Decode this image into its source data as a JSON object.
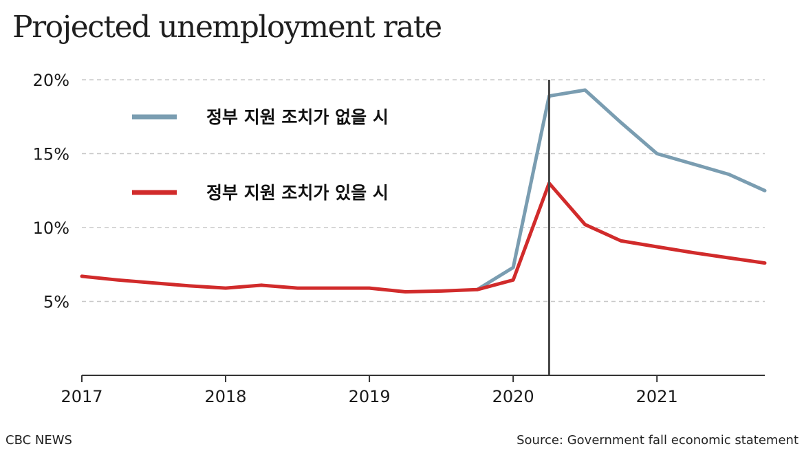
{
  "chart_data": {
    "type": "line",
    "title": "Projected unemployment rate",
    "yticks": [
      {
        "value": 5,
        "label": "5%"
      },
      {
        "value": 10,
        "label": "10%"
      },
      {
        "value": 15,
        "label": "15%"
      },
      {
        "value": 20,
        "label": "20%"
      }
    ],
    "xticks": [
      {
        "value": 2017,
        "label": "2017"
      },
      {
        "value": 2018,
        "label": "2018"
      },
      {
        "value": 2019,
        "label": "2019"
      },
      {
        "value": 2020,
        "label": "2020"
      },
      {
        "value": 2021,
        "label": "2021"
      }
    ],
    "xlim": [
      2017,
      2021.75
    ],
    "ylim": [
      0,
      20
    ],
    "grid": true,
    "marker_x": 2020.25,
    "legend_position": "top-left",
    "series": [
      {
        "name": "정부 지원 조치가 없을 시",
        "color": "#7a9db1",
        "points": [
          [
            2019.75,
            5.8
          ],
          [
            2020.0,
            7.3
          ],
          [
            2020.25,
            18.9
          ],
          [
            2020.5,
            19.3
          ],
          [
            2020.75,
            17.1
          ],
          [
            2021.0,
            15.0
          ],
          [
            2021.25,
            14.3
          ],
          [
            2021.5,
            13.6
          ],
          [
            2021.75,
            12.5
          ]
        ]
      },
      {
        "name": "정부 지원 조치가 있을 시",
        "color": "#d12b2b",
        "points": [
          [
            2017.0,
            6.7
          ],
          [
            2017.25,
            6.45
          ],
          [
            2017.5,
            6.25
          ],
          [
            2017.75,
            6.05
          ],
          [
            2018.0,
            5.9
          ],
          [
            2018.25,
            6.1
          ],
          [
            2018.5,
            5.9
          ],
          [
            2018.75,
            5.9
          ],
          [
            2019.0,
            5.9
          ],
          [
            2019.25,
            5.65
          ],
          [
            2019.5,
            5.7
          ],
          [
            2019.75,
            5.8
          ],
          [
            2020.0,
            6.45
          ],
          [
            2020.25,
            13.0
          ],
          [
            2020.5,
            10.2
          ],
          [
            2020.75,
            9.1
          ],
          [
            2021.0,
            8.7
          ],
          [
            2021.25,
            8.3
          ],
          [
            2021.5,
            7.95
          ],
          [
            2021.75,
            7.6
          ]
        ]
      }
    ]
  },
  "footer": {
    "publisher": "CBC NEWS",
    "source": "Source: Government fall economic statement"
  }
}
